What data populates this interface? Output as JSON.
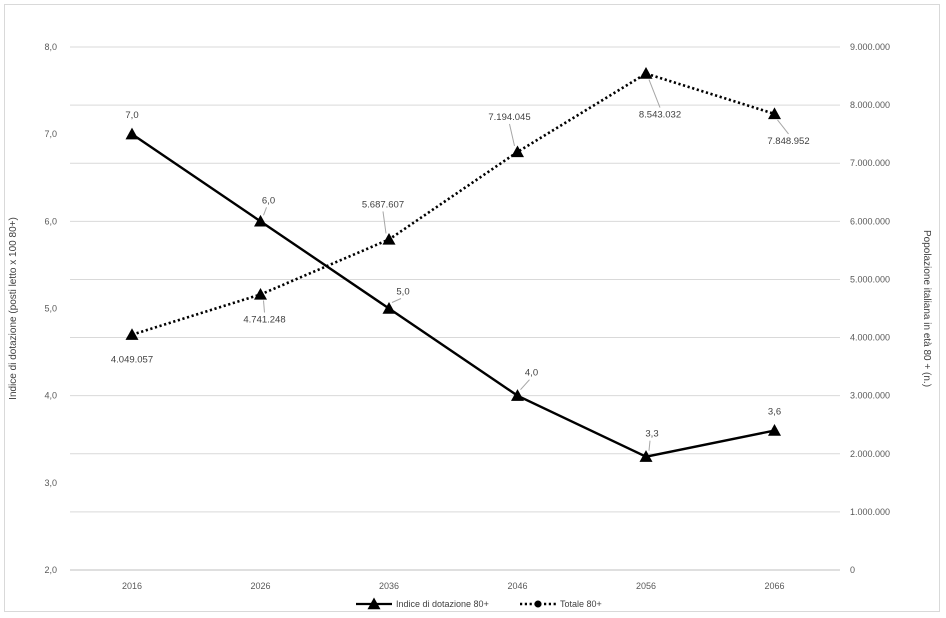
{
  "chart_data": {
    "type": "line",
    "categories": [
      "2016",
      "2026",
      "2036",
      "2046",
      "2056",
      "2066"
    ],
    "series": [
      {
        "name": "Indice di dotazione 80+",
        "axis": "left",
        "values": [
          7.0,
          6.0,
          5.0,
          4.0,
          3.3,
          3.6
        ],
        "labels": [
          "7,0",
          "6,0",
          "5,0",
          "4,0",
          "3,3",
          "3,6"
        ],
        "line_style": "solid",
        "marker": "triangle",
        "color": "#000000"
      },
      {
        "name": "Totale 80+",
        "axis": "right",
        "values": [
          4049057,
          4741248,
          5687607,
          7194045,
          8543032,
          7848952
        ],
        "labels": [
          "4.049.057",
          "4.741.248",
          "5.687.607",
          "7.194.045",
          "8.543.032",
          "7.848.952"
        ],
        "line_style": "dotted",
        "marker": "triangle",
        "color": "#000000"
      }
    ],
    "ylabel_left": "Indice di dotazione (posti letto x 100 80+)",
    "ylabel_right": "Popolazione italiana in età 80 + (n.)",
    "ylim_left": [
      2,
      8
    ],
    "ylim_right": [
      0,
      9000000
    ],
    "yticks_left": [
      "8,0",
      "7,0",
      "6,0",
      "5,0",
      "4,0",
      "3,0",
      "2,0"
    ],
    "yticks_right": [
      "9.000.000",
      "8.000.000",
      "7.000.000",
      "6.000.000",
      "5.000.000",
      "4.000.000",
      "3.000.000",
      "2.000.000",
      "1.000.000",
      "0"
    ],
    "grid": true,
    "legend_position": "bottom"
  }
}
